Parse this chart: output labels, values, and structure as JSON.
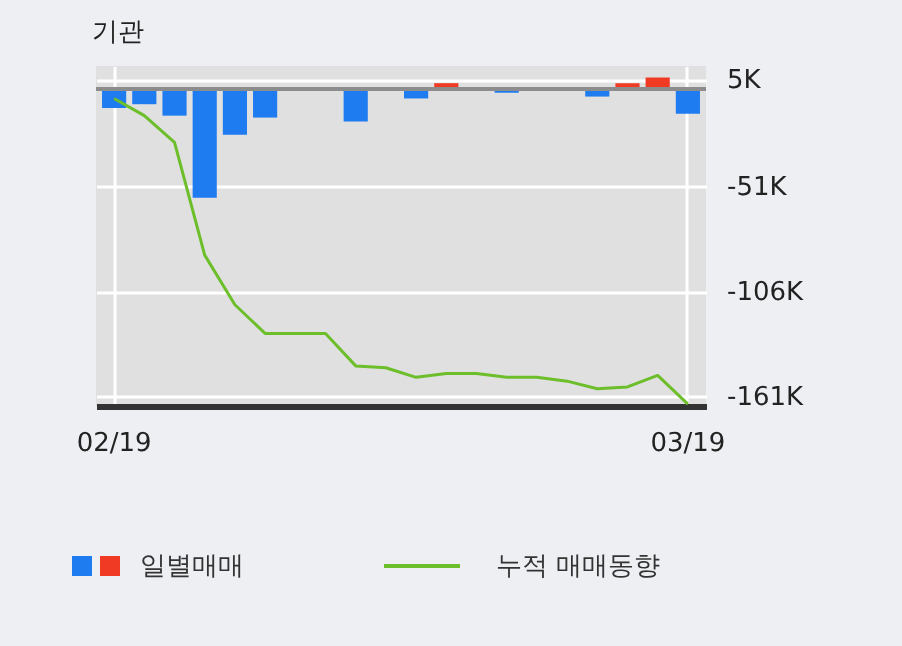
{
  "chart_data": {
    "type": "bar",
    "title": "기관",
    "categories": [
      "02/19",
      null,
      null,
      null,
      null,
      null,
      null,
      null,
      null,
      null,
      null,
      null,
      null,
      null,
      null,
      null,
      null,
      null,
      null,
      "03/19"
    ],
    "series": [
      {
        "name": "일별매매",
        "colors": [
          "#1f7bf0",
          "#1f7bf0",
          "#1f7bf0",
          "#1f7bf0",
          "#1f7bf0",
          "#1f7bf0",
          "#1f7bf0",
          "#1f7bf0",
          "#1f7bf0",
          "#1f7bf0",
          "#1f7bf0",
          "#f03a24",
          "#1f7bf0",
          "#1f7bf0",
          "#1f7bf0",
          "#1f7bf0",
          "#1f7bf0",
          "#f03a24",
          "#f03a24",
          "#1f7bf0"
        ],
        "values": [
          -10,
          -8,
          -14,
          -57,
          -24,
          -15,
          0,
          0,
          -17,
          0,
          -5,
          3,
          0,
          -2,
          0,
          0,
          -4,
          3,
          6,
          -13
        ]
      },
      {
        "name": "누적 매매동향",
        "type": "line",
        "color": "#6cbf2a",
        "values": [
          -5,
          -14,
          -28,
          -87,
          -113,
          -128,
          -128,
          -128,
          -145,
          -146,
          -151,
          -149,
          -149,
          -151,
          -151,
          -153,
          -157,
          -156,
          -150,
          -165
        ]
      }
    ],
    "ylim": [
      -166,
      12
    ],
    "yticks": [
      {
        "value": 5,
        "label": "5K"
      },
      {
        "value": -51,
        "label": "-51K"
      },
      {
        "value": -106,
        "label": "-106K"
      },
      {
        "value": -161,
        "label": "-161K"
      }
    ],
    "ref_lines": [
      {
        "axis": "y",
        "value": 0,
        "color": "#8c8c8c"
      }
    ],
    "grid": true,
    "legend": "bottom"
  }
}
